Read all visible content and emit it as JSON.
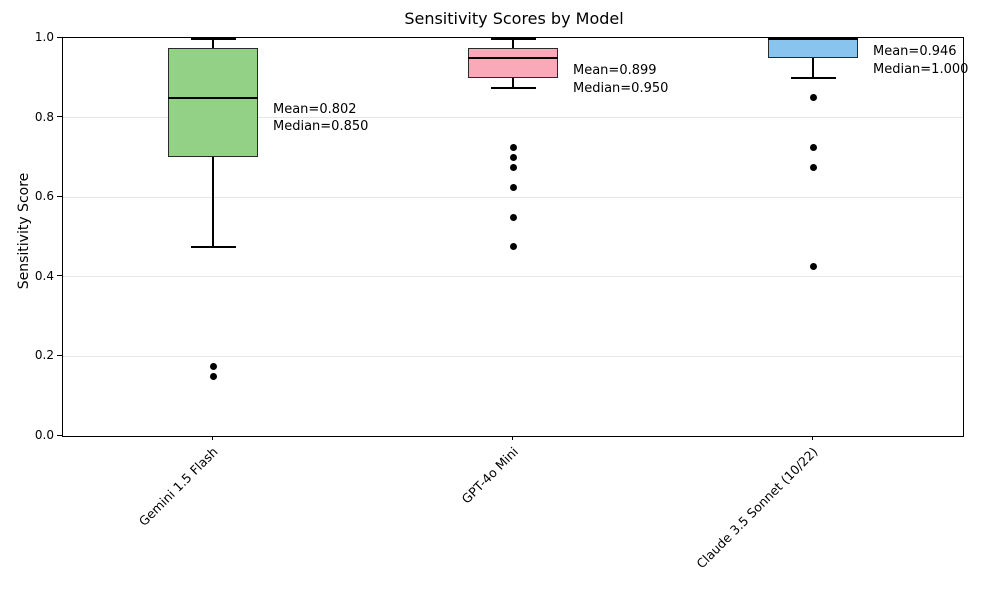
{
  "chart_data": {
    "type": "boxplot",
    "title": "Sensitivity Scores by Model",
    "xlabel": "",
    "ylabel": "Sensitivity Score",
    "ylim": [
      0.0,
      1.0
    ],
    "yticks": [
      0.0,
      0.2,
      0.4,
      0.6,
      0.8,
      1.0
    ],
    "ytick_labels": [
      "0.0",
      "0.2",
      "0.4",
      "0.6",
      "0.8",
      "1.0"
    ],
    "grid": "horizontal major gridlines, light gray",
    "legend_position": "none",
    "categories": [
      "Gemini 1.5 Flash",
      "GPT-4o Mini",
      "Claude 3.5 Sonnet (10/22)"
    ],
    "series": [
      {
        "model": "Gemini 1.5 Flash",
        "box_color": "#92d186",
        "whisker_low": 0.475,
        "q1": 0.7,
        "median": 0.85,
        "q3": 0.975,
        "whisker_high": 1.0,
        "mean": 0.802,
        "outliers": [
          0.175,
          0.15
        ],
        "annotation_lines": [
          "Mean=0.802",
          "Median=0.850"
        ]
      },
      {
        "model": "GPT-4o Mini",
        "box_color": "#f9a9b8",
        "whisker_low": 0.875,
        "q1": 0.9,
        "median": 0.95,
        "q3": 0.975,
        "whisker_high": 1.0,
        "mean": 0.899,
        "outliers": [
          0.725,
          0.7,
          0.675,
          0.625,
          0.55,
          0.475
        ],
        "annotation_lines": [
          "Mean=0.899",
          "Median=0.950"
        ]
      },
      {
        "model": "Claude 3.5 Sonnet (10/22)",
        "box_color": "#89c4ee",
        "whisker_low": 0.9,
        "q1": 0.95,
        "median": 1.0,
        "q3": 1.0,
        "whisker_high": 1.0,
        "mean": 0.946,
        "outliers": [
          0.85,
          0.725,
          0.675,
          0.425
        ],
        "annotation_lines": [
          "Mean=0.946",
          "Median=1.000"
        ]
      }
    ],
    "colors": {
      "box_edge": "#2a2a2a",
      "whisker": "#000000",
      "median": "#000000",
      "outlier": "#000000",
      "grid": "#e7e7e7",
      "text": "#000000",
      "background": "#ffffff"
    }
  }
}
